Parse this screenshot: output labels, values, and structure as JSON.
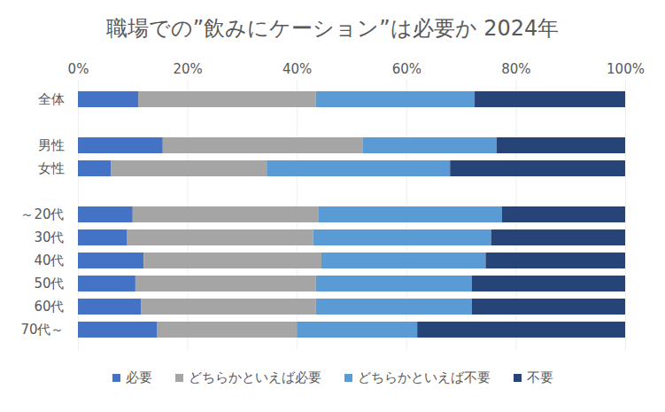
{
  "chart_data": {
    "type": "bar",
    "title": "職場での”飲みにケーション”は必要か 2024年",
    "orientation": "horizontal",
    "stacked": true,
    "grid": true,
    "legend": "bottom",
    "categories": [
      "全体",
      null,
      "男性",
      "女性",
      null,
      "～20代",
      "30代",
      "40代",
      "50代",
      "60代",
      "70代～"
    ],
    "series": [
      {
        "name": "必要",
        "color": "#4472c4",
        "values": [
          11,
          null,
          15.5,
          6,
          null,
          10,
          9,
          12,
          10.5,
          11.5,
          14.5
        ]
      },
      {
        "name": "どちらかといえば必要",
        "color": "#a5a5a5",
        "values": [
          32.5,
          null,
          36.5,
          28.5,
          null,
          34,
          34,
          32.5,
          33,
          32,
          25.5
        ]
      },
      {
        "name": "どちらかといえば不要",
        "color": "#5b9bd5",
        "values": [
          29,
          null,
          24.5,
          33.5,
          null,
          33.5,
          32.5,
          30,
          28.5,
          28.5,
          22
        ]
      },
      {
        "name": "不要",
        "color": "#264478",
        "values": [
          27.5,
          null,
          23.5,
          32,
          null,
          22.5,
          24.5,
          25.5,
          28,
          28,
          38
        ]
      }
    ],
    "xlim": [
      0,
      100
    ],
    "xticks": [
      {
        "value": 0,
        "label": "0%"
      },
      {
        "value": 20,
        "label": "20%"
      },
      {
        "value": 40,
        "label": "40%"
      },
      {
        "value": 60,
        "label": "60%"
      },
      {
        "value": 80,
        "label": "80%"
      },
      {
        "value": 100,
        "label": "100%"
      }
    ]
  }
}
